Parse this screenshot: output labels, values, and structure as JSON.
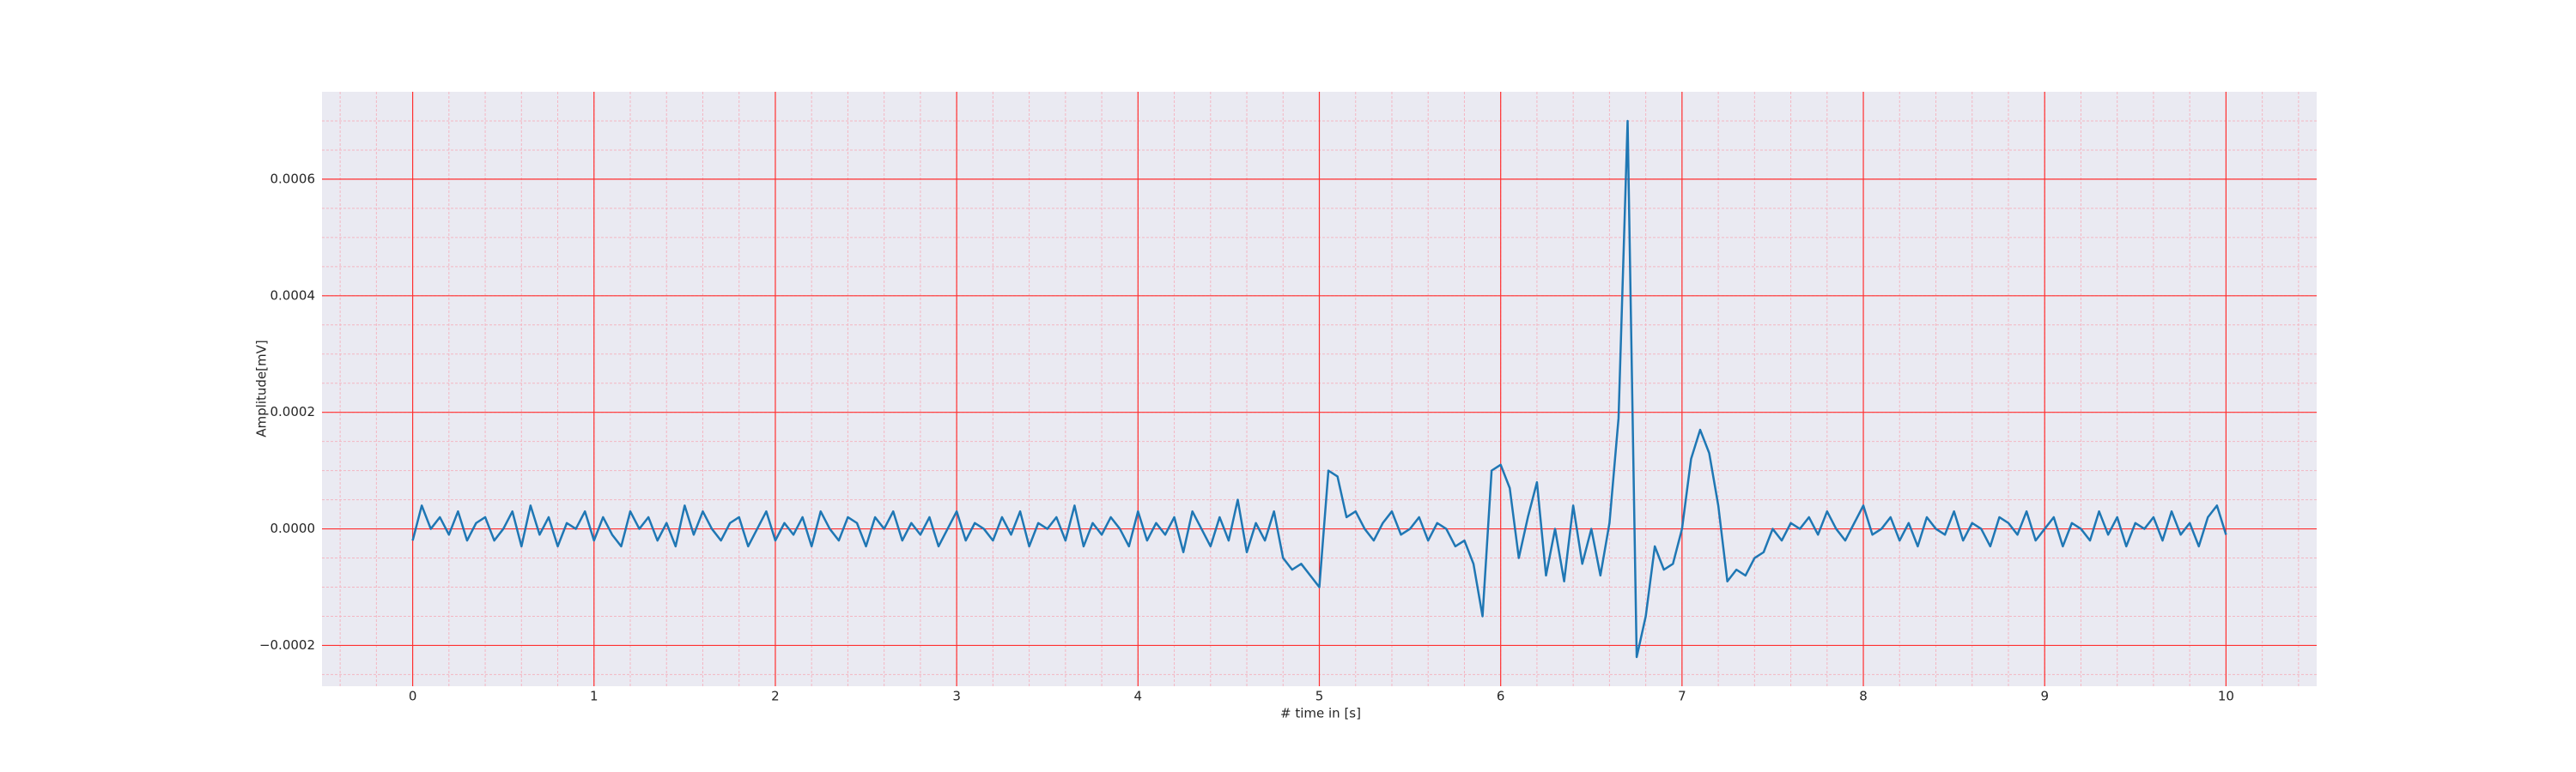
{
  "chart_data": {
    "type": "line",
    "xlabel": "# time in [s]",
    "ylabel": "Amplitude[mV]",
    "xlim": [
      -0.5,
      10.5
    ],
    "ylim": [
      -0.00027,
      0.00075
    ],
    "xticks": [
      0,
      1,
      2,
      3,
      4,
      5,
      6,
      7,
      8,
      9,
      10
    ],
    "yticks": [
      {
        "value": -0.0002,
        "label": "−0.0002"
      },
      {
        "value": 0,
        "label": "0.0000"
      },
      {
        "value": 0.0002,
        "label": "0.0002"
      },
      {
        "value": 0.0004,
        "label": "0.0004"
      },
      {
        "value": 0.0006,
        "label": "0.0006"
      }
    ],
    "grid": true,
    "minor_grid": true,
    "grid_color": "#ff3030",
    "minor_grid_color": "#f4b6c2",
    "background": "#eaeaf2",
    "series": [
      {
        "color": "#1f77b4",
        "x": [
          0,
          0.05,
          0.1,
          0.15,
          0.2,
          0.25,
          0.3,
          0.35,
          0.4,
          0.45,
          0.5,
          0.55,
          0.6,
          0.65,
          0.7,
          0.75,
          0.8,
          0.85,
          0.9,
          0.95,
          1,
          1.05,
          1.1,
          1.15,
          1.2,
          1.25,
          1.3,
          1.35,
          1.4,
          1.45,
          1.5,
          1.55,
          1.6,
          1.65,
          1.7,
          1.75,
          1.8,
          1.85,
          1.9,
          1.95,
          2,
          2.05,
          2.1,
          2.15,
          2.2,
          2.25,
          2.3,
          2.35,
          2.4,
          2.45,
          2.5,
          2.55,
          2.6,
          2.65,
          2.7,
          2.75,
          2.8,
          2.85,
          2.9,
          2.95,
          3,
          3.05,
          3.1,
          3.15,
          3.2,
          3.25,
          3.3,
          3.35,
          3.4,
          3.45,
          3.5,
          3.55,
          3.6,
          3.65,
          3.7,
          3.75,
          3.8,
          3.85,
          3.9,
          3.95,
          4,
          4.05,
          4.1,
          4.15,
          4.2,
          4.25,
          4.3,
          4.35,
          4.4,
          4.45,
          4.5,
          4.55,
          4.6,
          4.65,
          4.7,
          4.75,
          4.8,
          4.85,
          4.9,
          4.95,
          5,
          5.05,
          5.1,
          5.15,
          5.2,
          5.25,
          5.3,
          5.35,
          5.4,
          5.45,
          5.5,
          5.55,
          5.6,
          5.65,
          5.7,
          5.75,
          5.8,
          5.85,
          5.9,
          5.95,
          6,
          6.05,
          6.1,
          6.15,
          6.2,
          6.25,
          6.3,
          6.35,
          6.4,
          6.45,
          6.5,
          6.55,
          6.6,
          6.65,
          6.7,
          6.75,
          6.8,
          6.85,
          6.9,
          6.95,
          7,
          7.05,
          7.1,
          7.15,
          7.2,
          7.25,
          7.3,
          7.35,
          7.4,
          7.45,
          7.5,
          7.55,
          7.6,
          7.65,
          7.7,
          7.75,
          7.8,
          7.85,
          7.9,
          7.95,
          8,
          8.05,
          8.1,
          8.15,
          8.2,
          8.25,
          8.3,
          8.35,
          8.4,
          8.45,
          8.5,
          8.55,
          8.6,
          8.65,
          8.7,
          8.75,
          8.8,
          8.85,
          8.9,
          8.95,
          9,
          9.05,
          9.1,
          9.15,
          9.2,
          9.25,
          9.3,
          9.35,
          9.4,
          9.45,
          9.5,
          9.55,
          9.6,
          9.65,
          9.7,
          9.75,
          9.8,
          9.85,
          9.9,
          9.95,
          10
        ],
        "values": [
          -2e-05,
          4e-05,
          0,
          2e-05,
          -1e-05,
          3e-05,
          -2e-05,
          1e-05,
          2e-05,
          -2e-05,
          0,
          3e-05,
          -3e-05,
          4e-05,
          -1e-05,
          2e-05,
          -3e-05,
          1e-05,
          0,
          3e-05,
          -2e-05,
          2e-05,
          -1e-05,
          -3e-05,
          3e-05,
          0,
          2e-05,
          -2e-05,
          1e-05,
          -3e-05,
          4e-05,
          -1e-05,
          3e-05,
          0,
          -2e-05,
          1e-05,
          2e-05,
          -3e-05,
          0,
          3e-05,
          -2e-05,
          1e-05,
          -1e-05,
          2e-05,
          -3e-05,
          3e-05,
          0,
          -2e-05,
          2e-05,
          1e-05,
          -3e-05,
          2e-05,
          0,
          3e-05,
          -2e-05,
          1e-05,
          -1e-05,
          2e-05,
          -3e-05,
          0,
          3e-05,
          -2e-05,
          1e-05,
          0,
          -2e-05,
          2e-05,
          -1e-05,
          3e-05,
          -3e-05,
          1e-05,
          0,
          2e-05,
          -2e-05,
          4e-05,
          -3e-05,
          1e-05,
          -1e-05,
          2e-05,
          0,
          -3e-05,
          3e-05,
          -2e-05,
          1e-05,
          -1e-05,
          2e-05,
          -4e-05,
          3e-05,
          0,
          -3e-05,
          2e-05,
          -2e-05,
          5e-05,
          -4e-05,
          1e-05,
          -2e-05,
          3e-05,
          -5e-05,
          -7e-05,
          -6e-05,
          -8e-05,
          -0.0001,
          0.0001,
          9e-05,
          2e-05,
          3e-05,
          0,
          -2e-05,
          1e-05,
          3e-05,
          -1e-05,
          0,
          2e-05,
          -2e-05,
          1e-05,
          0,
          -3e-05,
          -2e-05,
          -6e-05,
          -0.00015,
          0.0001,
          0.00011,
          7e-05,
          -5e-05,
          2e-05,
          8e-05,
          -8e-05,
          0,
          -9e-05,
          4e-05,
          -6e-05,
          0,
          -8e-05,
          1e-05,
          0.00019,
          0.0007,
          -0.00022,
          -0.00015,
          -3e-05,
          -7e-05,
          -6e-05,
          0,
          0.00012,
          0.00017,
          0.00013,
          4e-05,
          -9e-05,
          -7e-05,
          -8e-05,
          -5e-05,
          -4e-05,
          0,
          -2e-05,
          1e-05,
          0,
          2e-05,
          -1e-05,
          3e-05,
          0,
          -2e-05,
          1e-05,
          4e-05,
          -1e-05,
          0,
          2e-05,
          -2e-05,
          1e-05,
          -3e-05,
          2e-05,
          0,
          -1e-05,
          3e-05,
          -2e-05,
          1e-05,
          0,
          -3e-05,
          2e-05,
          1e-05,
          -1e-05,
          3e-05,
          -2e-05,
          0,
          2e-05,
          -3e-05,
          1e-05,
          0,
          -2e-05,
          3e-05,
          -1e-05,
          2e-05,
          -3e-05,
          1e-05,
          0,
          2e-05,
          -2e-05,
          3e-05,
          -1e-05,
          1e-05,
          -3e-05,
          2e-05,
          4e-05,
          -1e-05
        ]
      }
    ]
  }
}
